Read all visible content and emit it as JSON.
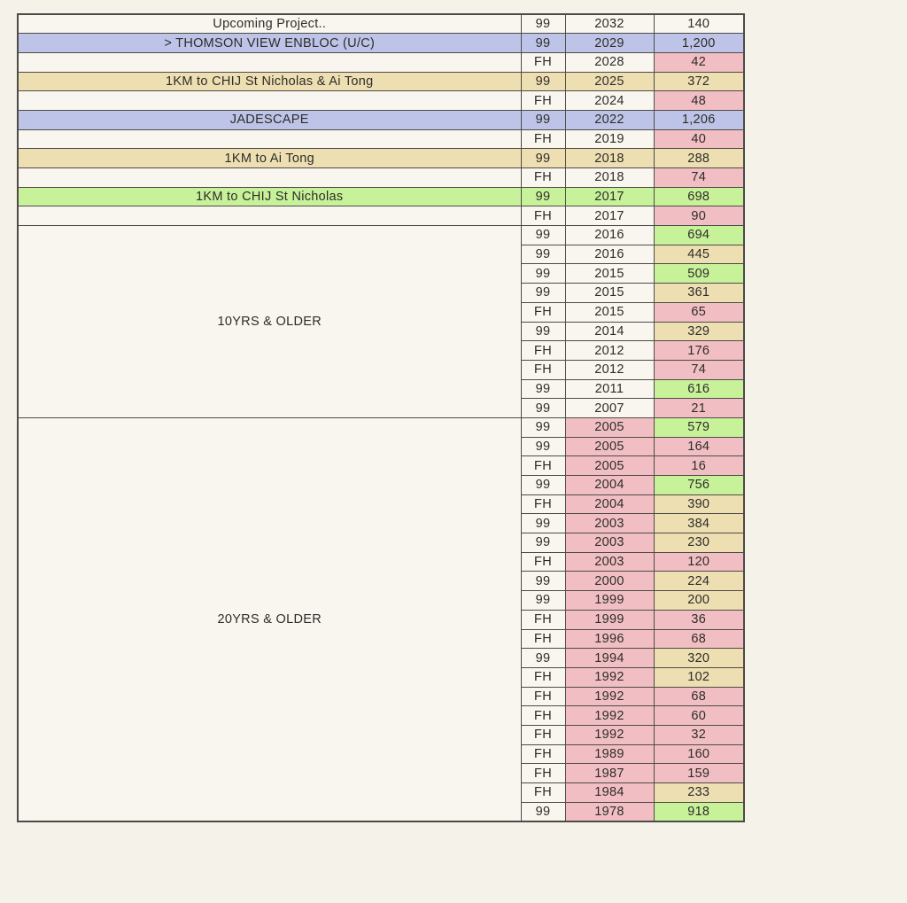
{
  "palette": {
    "page_background": "#f5f2ea",
    "cell_cream": "#f8f6ef",
    "row_blue": "#bdc4e7",
    "row_tan": "#eddfb2",
    "row_green": "#c8f29a",
    "cell_pink": "#f1bfc3",
    "border": "#4e4b47",
    "text": "#2e2c29"
  },
  "table": {
    "columns": [
      "project",
      "tenure",
      "year",
      "units"
    ],
    "rows": [
      {
        "label": "Upcoming Project..",
        "span": 1,
        "row_bg": "cream",
        "tenure": "99",
        "year": "2032",
        "year_bg": "cream",
        "count": "140",
        "count_bg": "cream"
      },
      {
        "label": "> THOMSON VIEW ENBLOC (U/C)",
        "span": 1,
        "row_bg": "blue",
        "tenure": "99",
        "year": "2029",
        "year_bg": "blue",
        "count": "1,200",
        "count_bg": "blue"
      },
      {
        "label": "",
        "span": 1,
        "row_bg": "cream",
        "tenure": "FH",
        "year": "2028",
        "year_bg": "cream",
        "count": "42",
        "count_bg": "pink"
      },
      {
        "label": "1KM to CHIJ St Nicholas & Ai Tong",
        "span": 1,
        "row_bg": "tan",
        "tenure": "99",
        "year": "2025",
        "year_bg": "tan",
        "count": "372",
        "count_bg": "tan"
      },
      {
        "label": "",
        "span": 1,
        "row_bg": "cream",
        "tenure": "FH",
        "year": "2024",
        "year_bg": "cream",
        "count": "48",
        "count_bg": "pink"
      },
      {
        "label": "JADESCAPE",
        "span": 1,
        "row_bg": "blue",
        "tenure": "99",
        "year": "2022",
        "year_bg": "blue",
        "count": "1,206",
        "count_bg": "blue"
      },
      {
        "label": "",
        "span": 1,
        "row_bg": "cream",
        "tenure": "FH",
        "year": "2019",
        "year_bg": "cream",
        "count": "40",
        "count_bg": "pink"
      },
      {
        "label": "1KM to Ai Tong",
        "span": 1,
        "row_bg": "tan",
        "tenure": "99",
        "year": "2018",
        "year_bg": "tan",
        "count": "288",
        "count_bg": "tan"
      },
      {
        "label": "",
        "span": 1,
        "row_bg": "cream",
        "tenure": "FH",
        "year": "2018",
        "year_bg": "cream",
        "count": "74",
        "count_bg": "pink"
      },
      {
        "label": "1KM to CHIJ St Nicholas",
        "span": 1,
        "row_bg": "green",
        "tenure": "99",
        "year": "2017",
        "year_bg": "green",
        "count": "698",
        "count_bg": "green"
      },
      {
        "label": "",
        "span": 1,
        "row_bg": "cream",
        "tenure": "FH",
        "year": "2017",
        "year_bg": "cream",
        "count": "90",
        "count_bg": "pink"
      },
      {
        "label": "10YRS & OLDER",
        "span": 10,
        "row_bg": "cream",
        "tenure": "99",
        "year": "2016",
        "year_bg": "cream",
        "count": "694",
        "count_bg": "green"
      },
      {
        "label": null,
        "row_bg": "cream",
        "tenure": "99",
        "year": "2016",
        "year_bg": "cream",
        "count": "445",
        "count_bg": "tan"
      },
      {
        "label": null,
        "row_bg": "cream",
        "tenure": "99",
        "year": "2015",
        "year_bg": "cream",
        "count": "509",
        "count_bg": "green"
      },
      {
        "label": null,
        "row_bg": "cream",
        "tenure": "99",
        "year": "2015",
        "year_bg": "cream",
        "count": "361",
        "count_bg": "tan"
      },
      {
        "label": null,
        "row_bg": "cream",
        "tenure": "FH",
        "year": "2015",
        "year_bg": "cream",
        "count": "65",
        "count_bg": "pink"
      },
      {
        "label": null,
        "row_bg": "cream",
        "tenure": "99",
        "year": "2014",
        "year_bg": "cream",
        "count": "329",
        "count_bg": "tan"
      },
      {
        "label": null,
        "row_bg": "cream",
        "tenure": "FH",
        "year": "2012",
        "year_bg": "cream",
        "count": "176",
        "count_bg": "pink"
      },
      {
        "label": null,
        "row_bg": "cream",
        "tenure": "FH",
        "year": "2012",
        "year_bg": "cream",
        "count": "74",
        "count_bg": "pink"
      },
      {
        "label": null,
        "row_bg": "cream",
        "tenure": "99",
        "year": "2011",
        "year_bg": "cream",
        "count": "616",
        "count_bg": "green"
      },
      {
        "label": null,
        "row_bg": "cream",
        "tenure": "99",
        "year": "2007",
        "year_bg": "cream",
        "count": "21",
        "count_bg": "pink"
      },
      {
        "label": "20YRS & OLDER",
        "span": 21,
        "row_bg": "cream",
        "tenure": "99",
        "year": "2005",
        "year_bg": "pink",
        "count": "579",
        "count_bg": "green"
      },
      {
        "label": null,
        "row_bg": "cream",
        "tenure": "99",
        "year": "2005",
        "year_bg": "pink",
        "count": "164",
        "count_bg": "pink"
      },
      {
        "label": null,
        "row_bg": "cream",
        "tenure": "FH",
        "year": "2005",
        "year_bg": "pink",
        "count": "16",
        "count_bg": "pink"
      },
      {
        "label": null,
        "row_bg": "cream",
        "tenure": "99",
        "year": "2004",
        "year_bg": "pink",
        "count": "756",
        "count_bg": "green"
      },
      {
        "label": null,
        "row_bg": "cream",
        "tenure": "FH",
        "year": "2004",
        "year_bg": "pink",
        "count": "390",
        "count_bg": "tan"
      },
      {
        "label": null,
        "row_bg": "cream",
        "tenure": "99",
        "year": "2003",
        "year_bg": "pink",
        "count": "384",
        "count_bg": "tan"
      },
      {
        "label": null,
        "row_bg": "cream",
        "tenure": "99",
        "year": "2003",
        "year_bg": "pink",
        "count": "230",
        "count_bg": "tan"
      },
      {
        "label": null,
        "row_bg": "cream",
        "tenure": "FH",
        "year": "2003",
        "year_bg": "pink",
        "count": "120",
        "count_bg": "pink"
      },
      {
        "label": null,
        "row_bg": "cream",
        "tenure": "99",
        "year": "2000",
        "year_bg": "pink",
        "count": "224",
        "count_bg": "tan"
      },
      {
        "label": null,
        "row_bg": "cream",
        "tenure": "99",
        "year": "1999",
        "year_bg": "pink",
        "count": "200",
        "count_bg": "tan"
      },
      {
        "label": null,
        "row_bg": "cream",
        "tenure": "FH",
        "year": "1999",
        "year_bg": "pink",
        "count": "36",
        "count_bg": "pink"
      },
      {
        "label": null,
        "row_bg": "cream",
        "tenure": "FH",
        "year": "1996",
        "year_bg": "pink",
        "count": "68",
        "count_bg": "pink"
      },
      {
        "label": null,
        "row_bg": "cream",
        "tenure": "99",
        "year": "1994",
        "year_bg": "pink",
        "count": "320",
        "count_bg": "tan"
      },
      {
        "label": null,
        "row_bg": "cream",
        "tenure": "FH",
        "year": "1992",
        "year_bg": "pink",
        "count": "102",
        "count_bg": "tan"
      },
      {
        "label": null,
        "row_bg": "cream",
        "tenure": "FH",
        "year": "1992",
        "year_bg": "pink",
        "count": "68",
        "count_bg": "pink"
      },
      {
        "label": null,
        "row_bg": "cream",
        "tenure": "FH",
        "year": "1992",
        "year_bg": "pink",
        "count": "60",
        "count_bg": "pink"
      },
      {
        "label": null,
        "row_bg": "cream",
        "tenure": "FH",
        "year": "1992",
        "year_bg": "pink",
        "count": "32",
        "count_bg": "pink"
      },
      {
        "label": null,
        "row_bg": "cream",
        "tenure": "FH",
        "year": "1989",
        "year_bg": "pink",
        "count": "160",
        "count_bg": "pink"
      },
      {
        "label": null,
        "row_bg": "cream",
        "tenure": "FH",
        "year": "1987",
        "year_bg": "pink",
        "count": "159",
        "count_bg": "pink"
      },
      {
        "label": null,
        "row_bg": "cream",
        "tenure": "FH",
        "year": "1984",
        "year_bg": "pink",
        "count": "233",
        "count_bg": "tan"
      },
      {
        "label": null,
        "row_bg": "cream",
        "tenure": "99",
        "year": "1978",
        "year_bg": "pink",
        "count": "918",
        "count_bg": "green"
      }
    ]
  }
}
